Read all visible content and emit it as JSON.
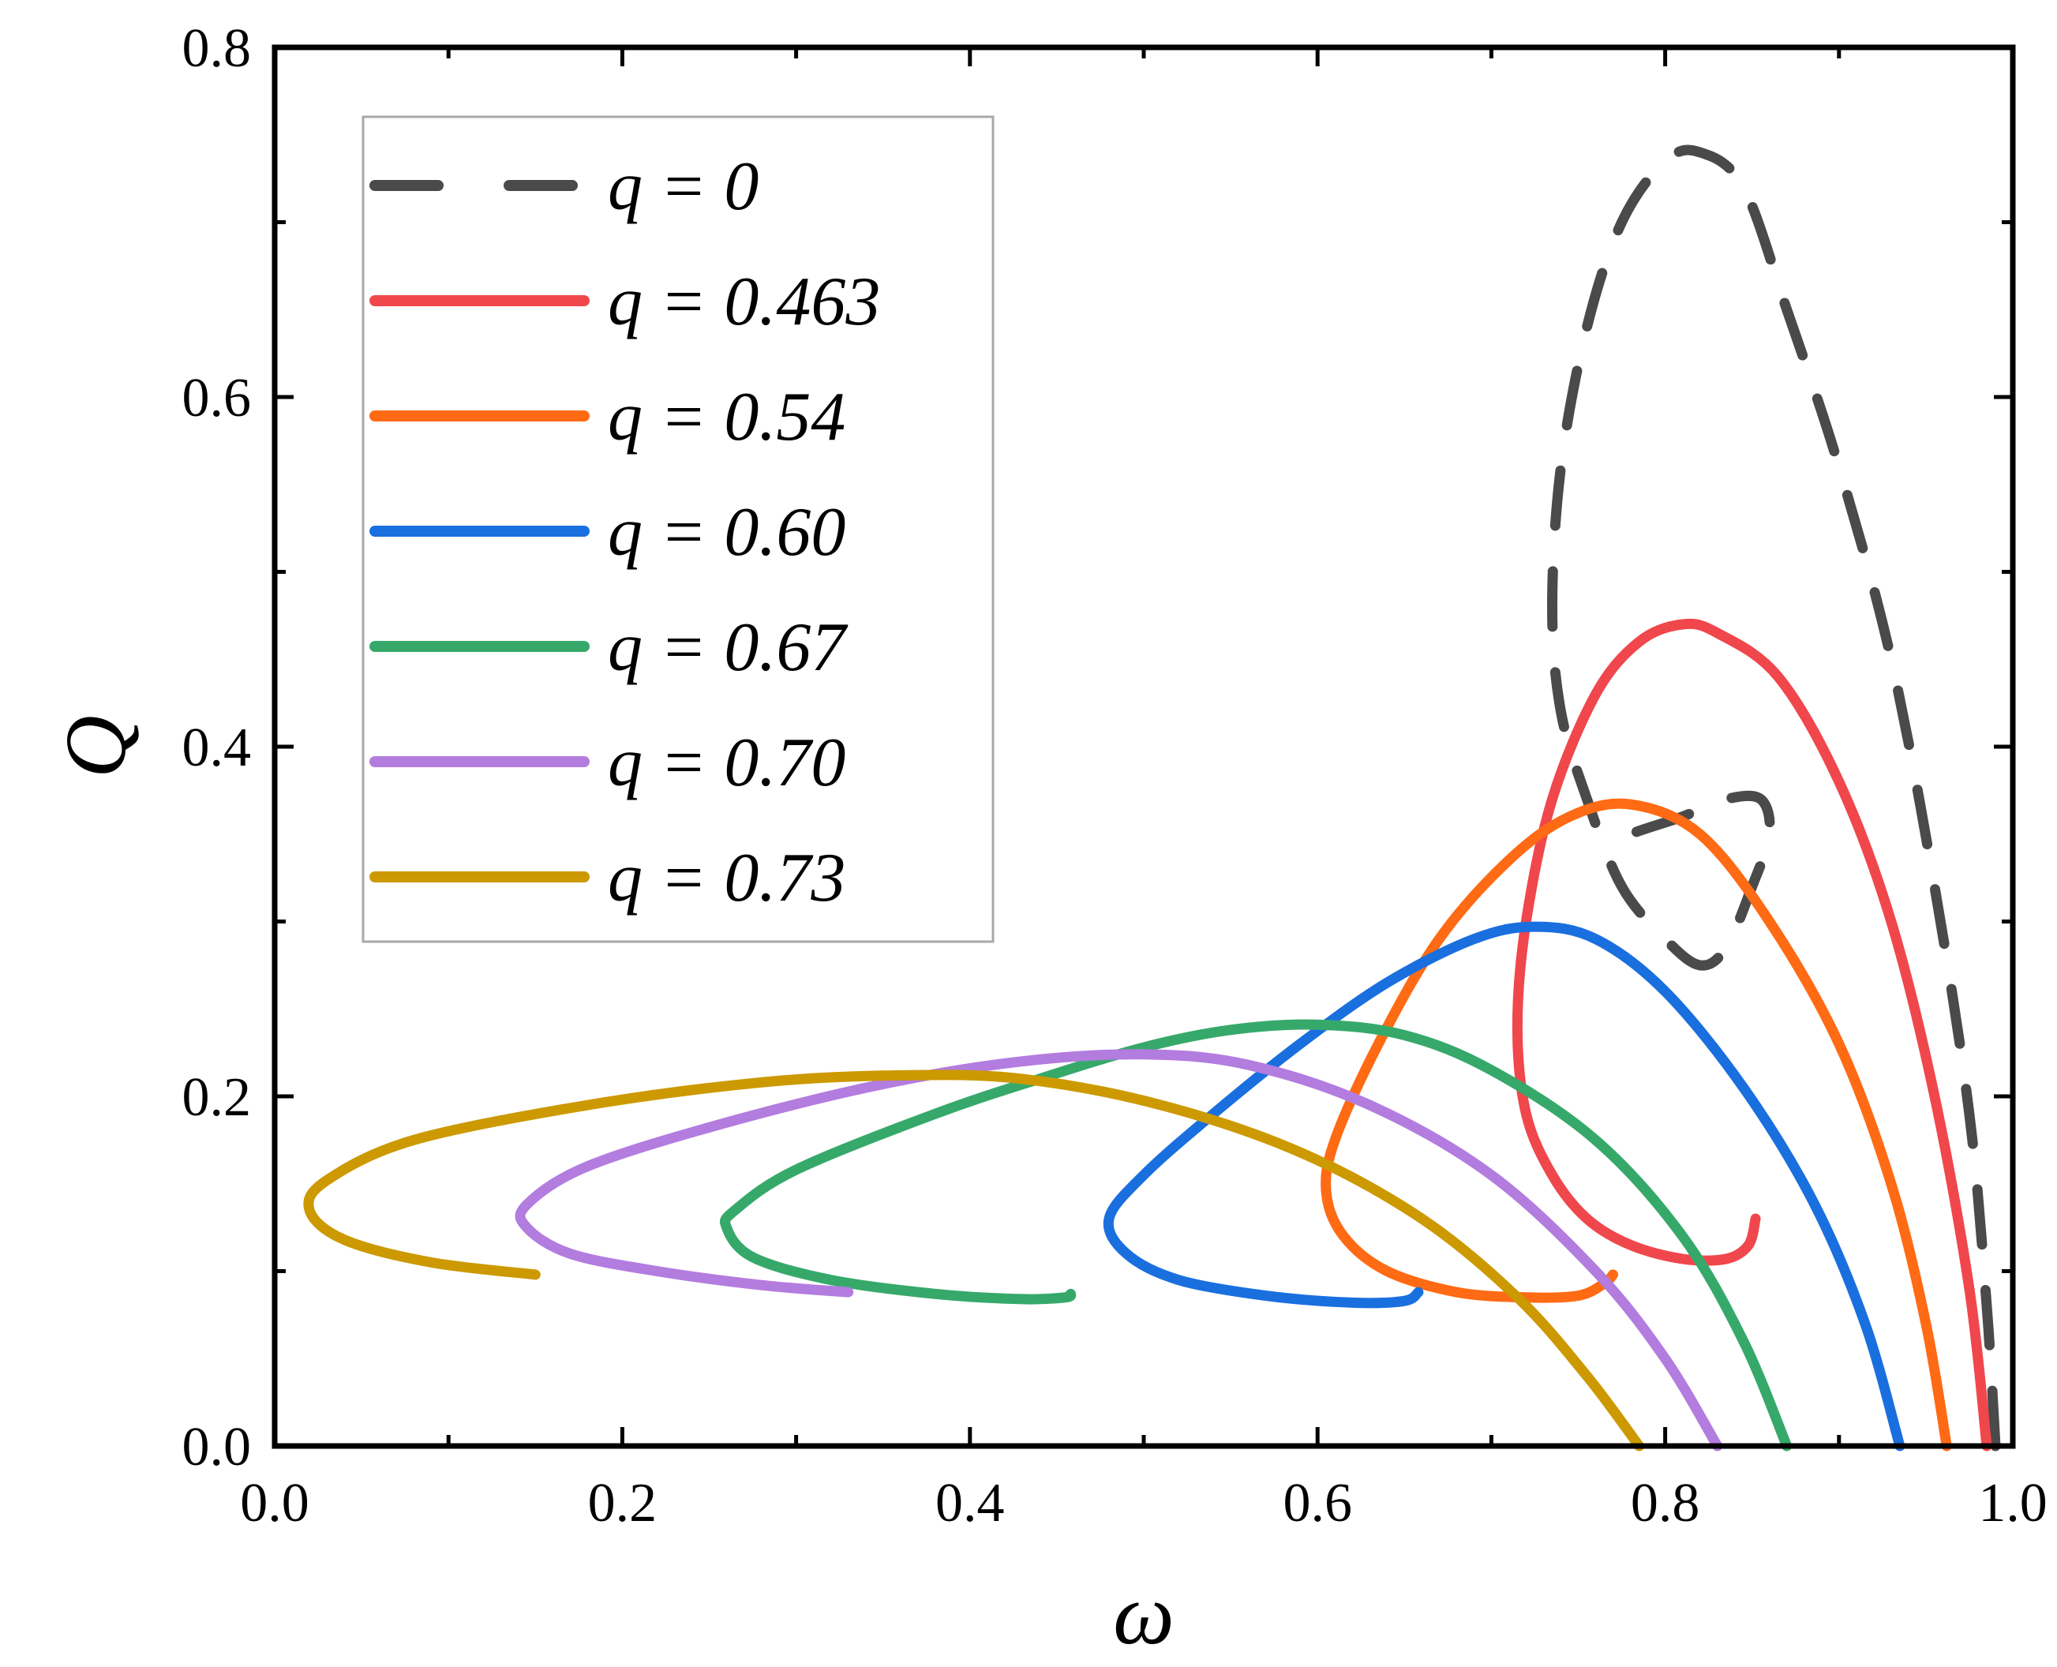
{
  "chart_data": {
    "type": "line",
    "title": "",
    "xlabel": "ω",
    "ylabel": "Q",
    "xlim": [
      0.0,
      1.0
    ],
    "ylim": [
      0.0,
      0.8
    ],
    "xticks": [
      "0.0",
      "0.2",
      "0.4",
      "0.6",
      "0.8",
      "1.0"
    ],
    "yticks": [
      "0.0",
      "0.2",
      "0.4",
      "0.6",
      "0.8"
    ],
    "grid": false,
    "legend_position": "top-left",
    "series": [
      {
        "name": "q = 0",
        "color": "#4a4a4a",
        "dashed": true,
        "points": [
          [
            0.99,
            0.0
          ],
          [
            0.985,
            0.08
          ],
          [
            0.975,
            0.19
          ],
          [
            0.955,
            0.32
          ],
          [
            0.93,
            0.45
          ],
          [
            0.9,
            0.56
          ],
          [
            0.87,
            0.65
          ],
          [
            0.845,
            0.72
          ],
          [
            0.82,
            0.74
          ],
          [
            0.8,
            0.735
          ],
          [
            0.775,
            0.7
          ],
          [
            0.755,
            0.64
          ],
          [
            0.74,
            0.56
          ],
          [
            0.735,
            0.48
          ],
          [
            0.74,
            0.42
          ],
          [
            0.755,
            0.37
          ],
          [
            0.775,
            0.32
          ],
          [
            0.8,
            0.29
          ],
          [
            0.82,
            0.275
          ],
          [
            0.835,
            0.285
          ],
          [
            0.85,
            0.32
          ],
          [
            0.86,
            0.35
          ],
          [
            0.855,
            0.37
          ],
          [
            0.835,
            0.37
          ],
          [
            0.81,
            0.36
          ],
          [
            0.78,
            0.35
          ],
          [
            0.76,
            0.34
          ]
        ]
      },
      {
        "name": "q = 0.463",
        "color": "#f0474c",
        "dashed": false,
        "points": [
          [
            0.985,
            0.0
          ],
          [
            0.975,
            0.09
          ],
          [
            0.955,
            0.2
          ],
          [
            0.93,
            0.3
          ],
          [
            0.9,
            0.38
          ],
          [
            0.865,
            0.44
          ],
          [
            0.83,
            0.465
          ],
          [
            0.81,
            0.47
          ],
          [
            0.785,
            0.46
          ],
          [
            0.76,
            0.43
          ],
          [
            0.735,
            0.37
          ],
          [
            0.72,
            0.3
          ],
          [
            0.715,
            0.24
          ],
          [
            0.72,
            0.19
          ],
          [
            0.735,
            0.155
          ],
          [
            0.755,
            0.13
          ],
          [
            0.78,
            0.115
          ],
          [
            0.81,
            0.107
          ],
          [
            0.835,
            0.107
          ],
          [
            0.848,
            0.115
          ],
          [
            0.852,
            0.13
          ]
        ]
      },
      {
        "name": "q = 0.54",
        "color": "#ff6a14",
        "dashed": false,
        "points": [
          [
            0.962,
            0.0
          ],
          [
            0.95,
            0.07
          ],
          [
            0.93,
            0.15
          ],
          [
            0.9,
            0.23
          ],
          [
            0.86,
            0.3
          ],
          [
            0.82,
            0.35
          ],
          [
            0.78,
            0.367
          ],
          [
            0.745,
            0.36
          ],
          [
            0.71,
            0.335
          ],
          [
            0.67,
            0.29
          ],
          [
            0.635,
            0.23
          ],
          [
            0.61,
            0.175
          ],
          [
            0.605,
            0.145
          ],
          [
            0.615,
            0.12
          ],
          [
            0.64,
            0.1
          ],
          [
            0.68,
            0.088
          ],
          [
            0.72,
            0.085
          ],
          [
            0.75,
            0.086
          ],
          [
            0.765,
            0.093
          ],
          [
            0.77,
            0.098
          ]
        ]
      },
      {
        "name": "q = 0.60",
        "color": "#1a6fdf",
        "dashed": false,
        "points": [
          [
            0.935,
            0.0
          ],
          [
            0.915,
            0.07
          ],
          [
            0.885,
            0.14
          ],
          [
            0.845,
            0.205
          ],
          [
            0.8,
            0.26
          ],
          [
            0.76,
            0.29
          ],
          [
            0.725,
            0.297
          ],
          [
            0.69,
            0.29
          ],
          [
            0.64,
            0.265
          ],
          [
            0.59,
            0.23
          ],
          [
            0.54,
            0.19
          ],
          [
            0.5,
            0.155
          ],
          [
            0.48,
            0.13
          ],
          [
            0.49,
            0.11
          ],
          [
            0.52,
            0.095
          ],
          [
            0.57,
            0.086
          ],
          [
            0.62,
            0.082
          ],
          [
            0.65,
            0.083
          ],
          [
            0.658,
            0.088
          ]
        ]
      },
      {
        "name": "q = 0.67",
        "color": "#36a96a",
        "dashed": false,
        "points": [
          [
            0.87,
            0.0
          ],
          [
            0.845,
            0.06
          ],
          [
            0.81,
            0.12
          ],
          [
            0.76,
            0.175
          ],
          [
            0.7,
            0.215
          ],
          [
            0.65,
            0.235
          ],
          [
            0.6,
            0.241
          ],
          [
            0.55,
            0.238
          ],
          [
            0.5,
            0.228
          ],
          [
            0.44,
            0.21
          ],
          [
            0.38,
            0.19
          ],
          [
            0.3,
            0.158
          ],
          [
            0.265,
            0.135
          ],
          [
            0.26,
            0.125
          ],
          [
            0.275,
            0.108
          ],
          [
            0.32,
            0.095
          ],
          [
            0.38,
            0.087
          ],
          [
            0.43,
            0.084
          ],
          [
            0.455,
            0.085
          ],
          [
            0.458,
            0.087
          ]
        ]
      },
      {
        "name": "q = 0.70",
        "color": "#b37cdf",
        "dashed": false,
        "points": [
          [
            0.83,
            0.0
          ],
          [
            0.8,
            0.05
          ],
          [
            0.76,
            0.1
          ],
          [
            0.7,
            0.155
          ],
          [
            0.63,
            0.195
          ],
          [
            0.56,
            0.218
          ],
          [
            0.5,
            0.224
          ],
          [
            0.43,
            0.22
          ],
          [
            0.35,
            0.207
          ],
          [
            0.26,
            0.185
          ],
          [
            0.18,
            0.16
          ],
          [
            0.145,
            0.138
          ],
          [
            0.145,
            0.125
          ],
          [
            0.17,
            0.11
          ],
          [
            0.22,
            0.1
          ],
          [
            0.28,
            0.092
          ],
          [
            0.33,
            0.088
          ]
        ]
      },
      {
        "name": "q = 0.73",
        "color": "#cc9900",
        "dashed": false,
        "points": [
          [
            0.785,
            0.0
          ],
          [
            0.755,
            0.04
          ],
          [
            0.715,
            0.085
          ],
          [
            0.66,
            0.13
          ],
          [
            0.59,
            0.168
          ],
          [
            0.51,
            0.195
          ],
          [
            0.43,
            0.21
          ],
          [
            0.36,
            0.212
          ],
          [
            0.28,
            0.208
          ],
          [
            0.18,
            0.195
          ],
          [
            0.08,
            0.175
          ],
          [
            0.03,
            0.152
          ],
          [
            0.02,
            0.135
          ],
          [
            0.04,
            0.118
          ],
          [
            0.09,
            0.105
          ],
          [
            0.15,
            0.098
          ]
        ]
      }
    ]
  }
}
